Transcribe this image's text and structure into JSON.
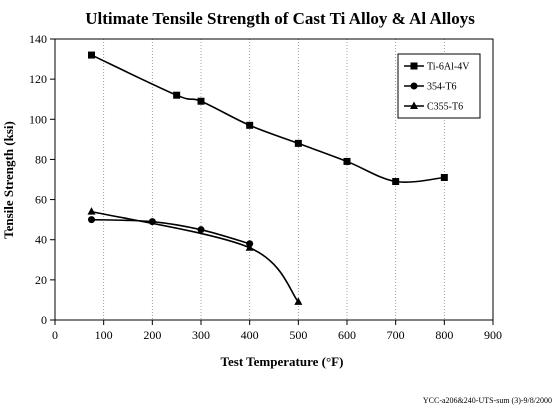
{
  "chart_data": {
    "type": "line",
    "title": "Ultimate Tensile Strength of Cast Ti Alloy & Al Alloys",
    "xlabel": "Test Temperature (°F)",
    "ylabel": "Tensile Strength (ksi)",
    "xlim": [
      0,
      900
    ],
    "ylim": [
      0,
      140
    ],
    "x_ticks": [
      0,
      100,
      200,
      300,
      400,
      500,
      600,
      700,
      800,
      900
    ],
    "y_ticks": [
      0,
      20,
      40,
      60,
      80,
      100,
      120,
      140
    ],
    "grid": "dotted vertical",
    "legend_position": "top-right",
    "series": [
      {
        "name": "Ti-6Al-4V",
        "marker": "square",
        "x": [
          75,
          250,
          300,
          400,
          500,
          600,
          700,
          800
        ],
        "y": [
          132,
          112,
          109,
          97,
          88,
          79,
          69,
          71
        ]
      },
      {
        "name": "354-T6",
        "marker": "circle",
        "x": [
          75,
          200,
          300,
          400
        ],
        "y": [
          50,
          49,
          45,
          38
        ]
      },
      {
        "name": "C355-T6",
        "marker": "triangle",
        "x": [
          75,
          400,
          500
        ],
        "y": [
          54,
          36,
          9
        ]
      }
    ]
  },
  "footer": "YCC-a206&240-UTS-sum (3)-9/8/2000",
  "colors": {
    "line": "#000000",
    "grid": "#888888"
  }
}
